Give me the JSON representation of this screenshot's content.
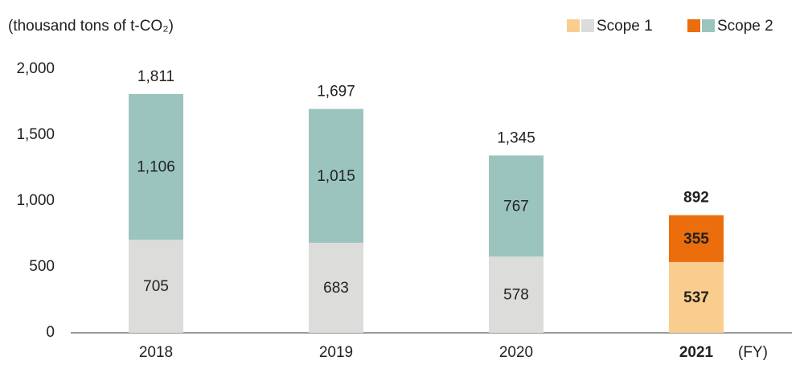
{
  "chart_data": {
    "type": "stacked-bar",
    "y_axis_label": "(thousand tons of t-CO₂)",
    "x_axis_label": "(FY)",
    "categories": [
      "2018",
      "2019",
      "2020",
      "2021"
    ],
    "series": [
      {
        "name": "Scope 1",
        "values": [
          705,
          683,
          578,
          537
        ],
        "colors": [
          "#dcdcda",
          "#dcdcda",
          "#dcdcda",
          "#f9cd8d"
        ]
      },
      {
        "name": "Scope 2",
        "values": [
          1106,
          1015,
          767,
          355
        ],
        "colors": [
          "#9bc4bf",
          "#9bc4bf",
          "#9bc4bf",
          "#eb6d0b"
        ]
      }
    ],
    "totals": [
      1811,
      1697,
      1345,
      892
    ],
    "ylim": [
      0,
      2000
    ],
    "yticks": [
      0,
      {
        "value": 500,
        "label": "500"
      },
      {
        "value": 1000,
        "label": "1,000"
      },
      {
        "value": 1500,
        "label": "1,500"
      },
      {
        "value": 2000,
        "label": "2,000"
      }
    ],
    "value_labels": [
      [
        "705",
        "683",
        "578",
        "537"
      ],
      [
        "1,106",
        "1,015",
        "767",
        "355"
      ]
    ],
    "total_labels": [
      "1,811",
      "1,697",
      "1,345",
      "892"
    ]
  }
}
